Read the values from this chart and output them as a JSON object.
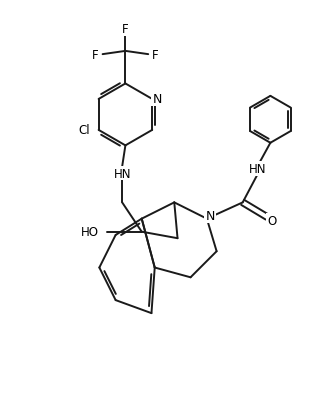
{
  "bg_color": "#ffffff",
  "line_color": "#1a1a1a",
  "line_width": 1.4,
  "font_size": 8.5,
  "fig_width": 3.29,
  "fig_height": 4.1,
  "dpi": 100,
  "xlim": [
    0,
    10
  ],
  "ylim": [
    0,
    12.5
  ]
}
